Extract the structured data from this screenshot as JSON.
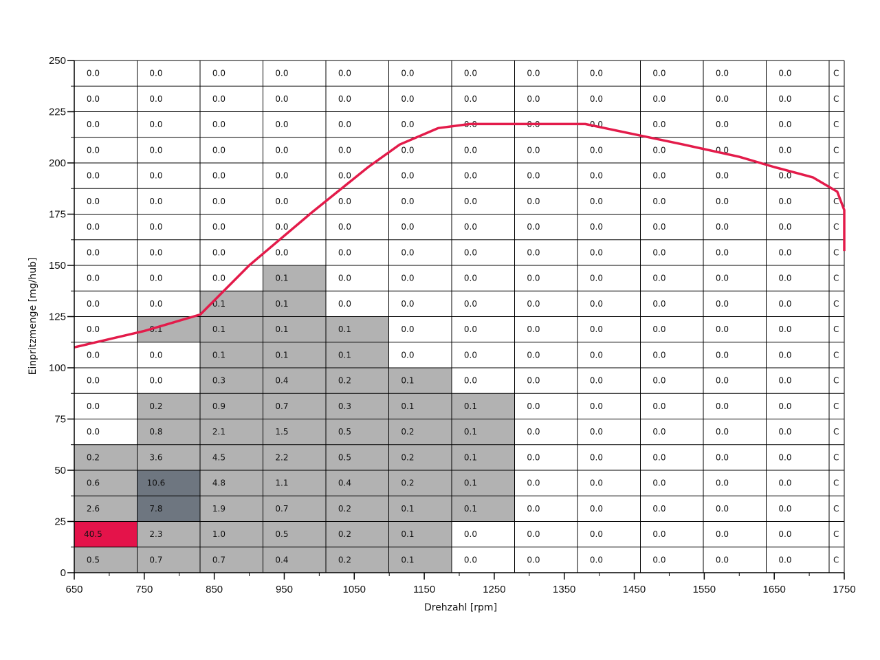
{
  "chart_data": {
    "type": "heatmap",
    "title": "",
    "xlabel": "Drehzahl [rpm]",
    "ylabel": "Einpritzmenge [mg/hub]",
    "xlim": [
      650,
      1750
    ],
    "ylim": [
      0,
      250
    ],
    "x_ticks": [
      "650",
      "750",
      "850",
      "950",
      "1050",
      "1150",
      "1250",
      "1350",
      "1450",
      "1550",
      "1650",
      "1750"
    ],
    "y_ticks": [
      "0",
      "25",
      "50",
      "75",
      "100",
      "125",
      "150",
      "175",
      "200",
      "225",
      "250"
    ],
    "columns_visible": 13,
    "last_column_clipped_label": "C",
    "rows_top_to_bottom": [
      [
        "0.0",
        "0.0",
        "0.0",
        "0.0",
        "0.0",
        "0.0",
        "0.0",
        "0.0",
        "0.0",
        "0.0",
        "0.0",
        "0.0"
      ],
      [
        "0.0",
        "0.0",
        "0.0",
        "0.0",
        "0.0",
        "0.0",
        "0.0",
        "0.0",
        "0.0",
        "0.0",
        "0.0",
        "0.0"
      ],
      [
        "0.0",
        "0.0",
        "0.0",
        "0.0",
        "0.0",
        "0.0",
        "0.0",
        "0.0",
        "0.0",
        "0.0",
        "0.0",
        "0.0"
      ],
      [
        "0.0",
        "0.0",
        "0.0",
        "0.0",
        "0.0",
        "0.0",
        "0.0",
        "0.0",
        "0.0",
        "0.0",
        "0.0",
        "0.0"
      ],
      [
        "0.0",
        "0.0",
        "0.0",
        "0.0",
        "0.0",
        "0.0",
        "0.0",
        "0.0",
        "0.0",
        "0.0",
        "0.0",
        "0.0"
      ],
      [
        "0.0",
        "0.0",
        "0.0",
        "0.0",
        "0.0",
        "0.0",
        "0.0",
        "0.0",
        "0.0",
        "0.0",
        "0.0",
        "0.0"
      ],
      [
        "0.0",
        "0.0",
        "0.0",
        "0.0",
        "0.0",
        "0.0",
        "0.0",
        "0.0",
        "0.0",
        "0.0",
        "0.0",
        "0.0"
      ],
      [
        "0.0",
        "0.0",
        "0.0",
        "0.0",
        "0.0",
        "0.0",
        "0.0",
        "0.0",
        "0.0",
        "0.0",
        "0.0",
        "0.0"
      ],
      [
        "0.0",
        "0.0",
        "0.0",
        "0.1",
        "0.0",
        "0.0",
        "0.0",
        "0.0",
        "0.0",
        "0.0",
        "0.0",
        "0.0"
      ],
      [
        "0.0",
        "0.0",
        "0.1",
        "0.1",
        "0.0",
        "0.0",
        "0.0",
        "0.0",
        "0.0",
        "0.0",
        "0.0",
        "0.0"
      ],
      [
        "0.0",
        "0.1",
        "0.1",
        "0.1",
        "0.1",
        "0.0",
        "0.0",
        "0.0",
        "0.0",
        "0.0",
        "0.0",
        "0.0"
      ],
      [
        "0.0",
        "0.0",
        "0.1",
        "0.1",
        "0.1",
        "0.0",
        "0.0",
        "0.0",
        "0.0",
        "0.0",
        "0.0",
        "0.0"
      ],
      [
        "0.0",
        "0.0",
        "0.3",
        "0.4",
        "0.2",
        "0.1",
        "0.0",
        "0.0",
        "0.0",
        "0.0",
        "0.0",
        "0.0"
      ],
      [
        "0.0",
        "0.2",
        "0.9",
        "0.7",
        "0.3",
        "0.1",
        "0.1",
        "0.0",
        "0.0",
        "0.0",
        "0.0",
        "0.0"
      ],
      [
        "0.0",
        "0.8",
        "2.1",
        "1.5",
        "0.5",
        "0.2",
        "0.1",
        "0.0",
        "0.0",
        "0.0",
        "0.0",
        "0.0"
      ],
      [
        "0.2",
        "3.6",
        "4.5",
        "2.2",
        "0.5",
        "0.2",
        "0.1",
        "0.0",
        "0.0",
        "0.0",
        "0.0",
        "0.0"
      ],
      [
        "0.6",
        "10.6",
        "4.8",
        "1.1",
        "0.4",
        "0.2",
        "0.1",
        "0.0",
        "0.0",
        "0.0",
        "0.0",
        "0.0"
      ],
      [
        "2.6",
        "7.8",
        "1.9",
        "0.7",
        "0.2",
        "0.1",
        "0.1",
        "0.0",
        "0.0",
        "0.0",
        "0.0",
        "0.0"
      ],
      [
        "40.5",
        "2.3",
        "1.0",
        "0.5",
        "0.2",
        "0.1",
        "0.0",
        "0.0",
        "0.0",
        "0.0",
        "0.0",
        "0.0"
      ],
      [
        "0.5",
        "0.7",
        "0.7",
        "0.4",
        "0.2",
        "0.1",
        "0.0",
        "0.0",
        "0.0",
        "0.0",
        "0.0",
        "0.0"
      ]
    ],
    "color_thresholds": [
      {
        "min": 20,
        "color": "#e4134a"
      },
      {
        "min": 5,
        "color": "#6e7680"
      },
      {
        "min": 0.1,
        "color": "#b2b2b2"
      }
    ],
    "line_series": {
      "color": "#e31b4a",
      "x": [
        650,
        700,
        750,
        830,
        900,
        990,
        1070,
        1115,
        1170,
        1215,
        1270,
        1315,
        1380,
        1450,
        1520,
        1600,
        1650,
        1705,
        1740,
        1750,
        1770
      ],
      "y": [
        110,
        114,
        118,
        126,
        150,
        176,
        198,
        209,
        217,
        219,
        219,
        219,
        219,
        214,
        209,
        203,
        198,
        193,
        186,
        177,
        157
      ]
    }
  }
}
